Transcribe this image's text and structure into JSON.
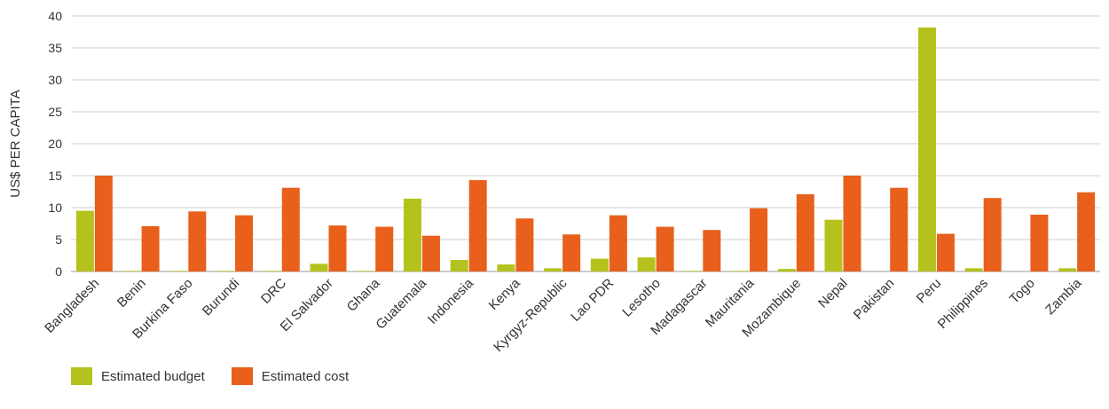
{
  "chart_data": {
    "type": "bar",
    "title": "",
    "xlabel": "",
    "ylabel": "US$ PER CAPITA",
    "ylim": [
      0,
      40
    ],
    "yticks": [
      0,
      5,
      10,
      15,
      20,
      25,
      30,
      35,
      40
    ],
    "grid": true,
    "legend_position": "bottom-left",
    "categories": [
      "Bangladesh",
      "Benin",
      "Burkina Faso",
      "Burundi",
      "DRC",
      "El Salvador",
      "Ghana",
      "Guatemala",
      "Indonesia",
      "Kenya",
      "Kyrgyz-Republic",
      "Lao PDR",
      "Lesotho",
      "Madagascar",
      "Mauritania",
      "Mozambique",
      "Nepal",
      "Pakistan",
      "Peru",
      "Philippines",
      "Togo",
      "Zambia"
    ],
    "series": [
      {
        "name": "Estimated budget",
        "color": "#b5c21d",
        "values": [
          9.5,
          0.1,
          0.1,
          0.1,
          0.1,
          1.2,
          0.1,
          11.4,
          1.8,
          1.1,
          0.5,
          2.0,
          2.2,
          0.1,
          0.1,
          0.4,
          8.1,
          0.0,
          38.2,
          0.5,
          0.0,
          0.5
        ]
      },
      {
        "name": "Estimated cost",
        "color": "#e8601c",
        "values": [
          15.0,
          7.1,
          9.4,
          8.8,
          13.1,
          7.2,
          7.0,
          5.6,
          14.3,
          8.3,
          5.8,
          8.8,
          7.0,
          6.5,
          9.9,
          12.1,
          15.0,
          13.1,
          5.9,
          11.5,
          8.9,
          12.4
        ]
      }
    ]
  }
}
